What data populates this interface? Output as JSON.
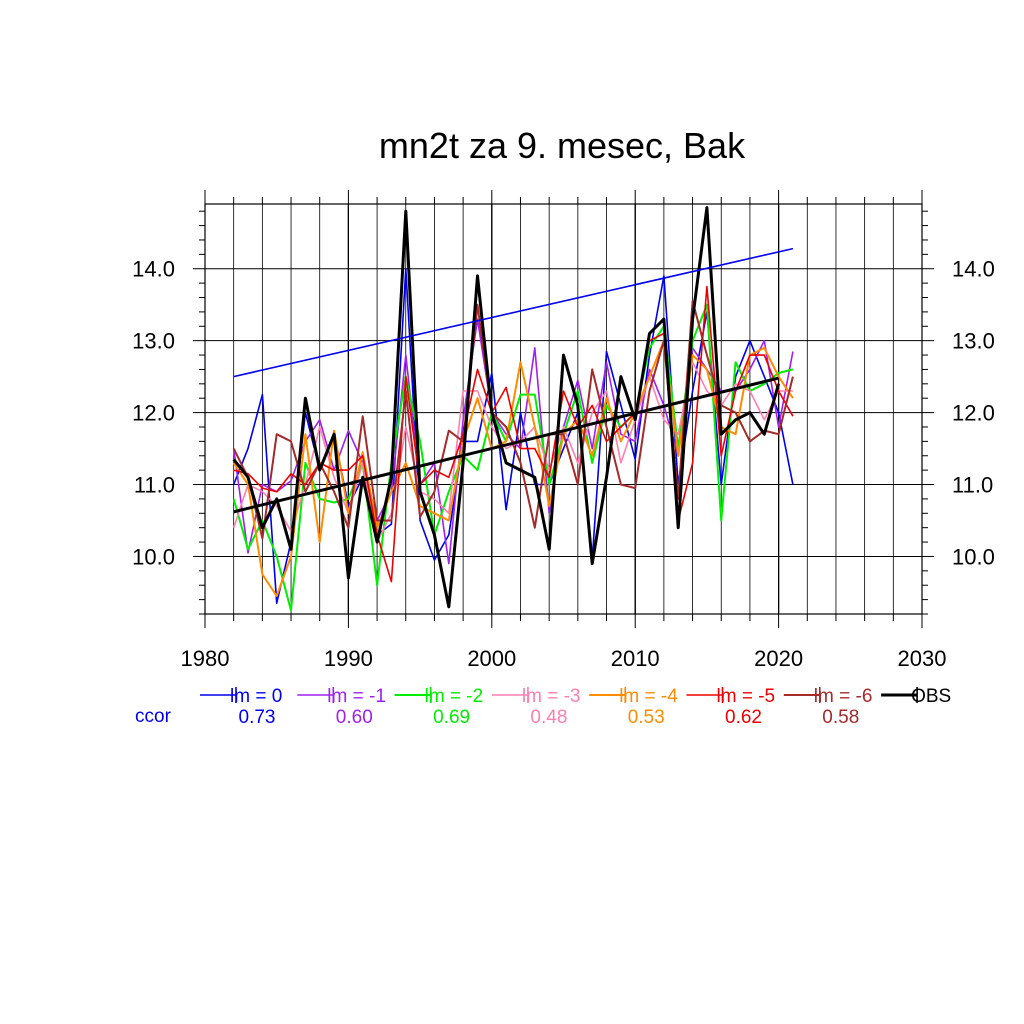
{
  "chart_data": {
    "type": "line",
    "title": "mn2t za 9. mesec, Bak",
    "xlabel": "",
    "ylabel": "",
    "xlim": [
      1980,
      2030
    ],
    "ylim": [
      9.2,
      14.9
    ],
    "x_ticks": [
      "1980",
      "1990",
      "2000",
      "2010",
      "2020",
      "2030"
    ],
    "y_ticks": [
      "10.0",
      "11.0",
      "12.0",
      "13.0",
      "14.0"
    ],
    "grid": true,
    "legend_position": "bottom",
    "x": [
      1982,
      1983,
      1984,
      1985,
      1986,
      1987,
      1988,
      1989,
      1990,
      1991,
      1992,
      1993,
      1994,
      1995,
      1996,
      1997,
      1998,
      1999,
      2000,
      2001,
      2002,
      2003,
      2004,
      2005,
      2006,
      2007,
      2008,
      2009,
      2010,
      2011,
      2012,
      2013,
      2014,
      2015,
      2016,
      2017,
      2018,
      2019,
      2020,
      2021
    ],
    "series": [
      {
        "name": "lm = 0",
        "color": "#0000ee",
        "width": 1.6,
        "ccor": "0.73",
        "values": [
          11.0,
          11.5,
          12.25,
          9.35,
          10.2,
          12.0,
          11.2,
          11.7,
          10.7,
          11.1,
          10.3,
          10.45,
          14.0,
          10.5,
          9.95,
          10.3,
          11.6,
          11.6,
          12.55,
          10.65,
          12.0,
          11.0,
          11.0,
          11.5,
          12.0,
          9.95,
          12.85,
          12.1,
          11.35,
          12.8,
          13.9,
          11.0,
          12.3,
          13.4,
          11.0,
          12.5,
          13.0,
          12.5,
          12.0,
          11.0
        ]
      },
      {
        "name": "lm = -1",
        "color": "#a020f0",
        "width": 1.6,
        "ccor": "0.60",
        "values": [
          11.5,
          10.05,
          11.0,
          10.9,
          11.05,
          11.6,
          11.9,
          11.2,
          11.75,
          11.3,
          10.5,
          10.9,
          12.8,
          11.0,
          11.3,
          9.9,
          11.9,
          13.3,
          12.0,
          11.7,
          11.5,
          12.9,
          10.6,
          11.8,
          12.45,
          11.5,
          12.7,
          11.7,
          11.6,
          12.6,
          12.1,
          11.4,
          12.9,
          12.6,
          12.3,
          12.3,
          12.6,
          13.0,
          11.8,
          12.85
        ]
      },
      {
        "name": "lm = -2",
        "color": "#00ee00",
        "width": 2.0,
        "ccor": "0.69",
        "values": [
          10.8,
          10.1,
          10.5,
          10.0,
          9.25,
          11.3,
          10.8,
          10.75,
          10.8,
          11.3,
          9.6,
          11.3,
          12.5,
          11.6,
          10.3,
          10.9,
          11.4,
          11.2,
          12.0,
          11.6,
          12.25,
          12.25,
          11.0,
          11.7,
          12.3,
          11.3,
          12.1,
          11.8,
          12.0,
          12.9,
          13.2,
          11.5,
          13.0,
          13.5,
          10.5,
          12.7,
          12.3,
          12.4,
          12.55,
          12.6
        ]
      },
      {
        "name": "lm = -3",
        "color": "#ff7fb0",
        "width": 1.6,
        "ccor": "0.48",
        "values": [
          10.4,
          11.0,
          10.9,
          10.7,
          10.35,
          11.0,
          11.8,
          11.1,
          10.6,
          11.3,
          10.2,
          10.6,
          11.8,
          10.9,
          10.8,
          10.6,
          12.3,
          12.3,
          11.8,
          11.5,
          11.6,
          11.8,
          11.2,
          11.8,
          11.3,
          12.0,
          12.3,
          11.3,
          11.9,
          12.5,
          11.9,
          11.7,
          12.7,
          12.3,
          12.1,
          12.4,
          12.3,
          11.9,
          12.3,
          12.3
        ]
      },
      {
        "name": "lm = -4",
        "color": "#ff8c00",
        "width": 2.0,
        "ccor": "0.53",
        "values": [
          11.3,
          11.0,
          9.75,
          9.45,
          10.0,
          11.7,
          10.2,
          11.75,
          10.6,
          11.45,
          10.4,
          10.9,
          11.3,
          10.7,
          10.6,
          10.5,
          11.6,
          12.2,
          11.5,
          11.6,
          12.7,
          11.8,
          10.7,
          11.7,
          11.9,
          11.4,
          12.2,
          11.6,
          12.0,
          12.5,
          13.0,
          11.4,
          12.8,
          12.6,
          11.8,
          11.7,
          12.8,
          12.9,
          12.5,
          12.2
        ]
      },
      {
        "name": "lm = -5",
        "color": "#ee0000",
        "width": 1.6,
        "ccor": "0.62",
        "values": [
          11.2,
          11.15,
          10.95,
          10.9,
          11.15,
          11.0,
          11.3,
          11.2,
          11.2,
          11.4,
          10.3,
          9.65,
          12.5,
          11.0,
          11.2,
          11.1,
          11.7,
          12.6,
          12.0,
          12.35,
          11.5,
          11.5,
          11.1,
          12.3,
          11.8,
          12.1,
          11.6,
          11.8,
          12.0,
          13.0,
          13.1,
          10.5,
          11.3,
          13.75,
          11.4,
          12.3,
          12.8,
          12.8,
          12.3,
          11.95
        ]
      },
      {
        "name": "lm = -6",
        "color": "#a52a2a",
        "width": 2.0,
        "ccor": "0.58",
        "values": [
          11.5,
          11.1,
          10.25,
          11.7,
          11.6,
          10.9,
          11.3,
          10.9,
          10.4,
          11.95,
          10.5,
          10.5,
          12.3,
          10.55,
          10.9,
          11.75,
          11.6,
          13.5,
          12.0,
          11.8,
          11.3,
          10.4,
          11.7,
          11.7,
          11.0,
          12.6,
          11.8,
          11.0,
          10.95,
          12.3,
          13.0,
          10.8,
          13.55,
          12.8,
          12.1,
          12.0,
          11.6,
          11.75,
          11.7,
          12.5
        ]
      },
      {
        "name": "OBS",
        "color": "#000000",
        "width": 3.0,
        "ccor": "",
        "values": [
          11.35,
          11.1,
          10.4,
          10.8,
          10.1,
          12.2,
          11.2,
          11.7,
          9.7,
          11.1,
          10.2,
          11.1,
          14.8,
          10.9,
          10.3,
          9.3,
          11.3,
          13.9,
          12.0,
          11.3,
          11.2,
          11.1,
          10.1,
          12.8,
          12.1,
          9.9,
          11.1,
          12.5,
          11.9,
          13.1,
          13.3,
          10.4,
          13.3,
          14.85,
          11.7,
          11.9,
          12.0,
          11.7,
          12.4,
          null
        ]
      }
    ],
    "trend_lines": [
      {
        "series": "lm = 0",
        "color": "#0000ee",
        "width": 1.6,
        "x": [
          1982,
          2021
        ],
        "y": [
          12.5,
          14.28
        ]
      },
      {
        "series": "OBS",
        "color": "#000000",
        "width": 3.0,
        "x": [
          1982,
          2020
        ],
        "y": [
          10.62,
          12.48
        ]
      }
    ],
    "ccor_label": "ccor",
    "ccor_label_color": "#0000ee"
  }
}
